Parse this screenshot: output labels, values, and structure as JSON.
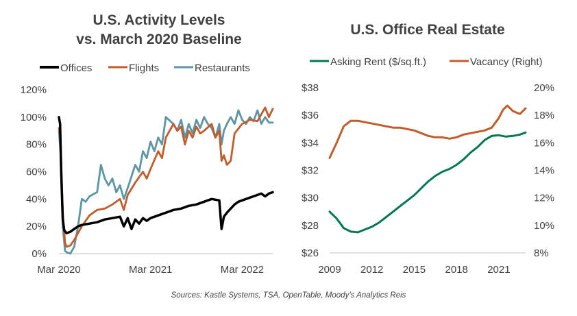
{
  "source_note": "Sources: Kastle Systems, TSA, OpenTable, Moody’s Analytics Reis",
  "chart_data": [
    {
      "type": "line",
      "title_lines": [
        "U.S. Activity Levels",
        "vs. March 2020 Baseline"
      ],
      "xlabel": "",
      "ylabel": "",
      "x_ticks": [
        "Mar 2020",
        "Mar 2021",
        "Mar 2022"
      ],
      "x_tick_months": [
        0,
        12,
        24
      ],
      "xlim_months": [
        0,
        28
      ],
      "ylim": [
        0,
        1.2
      ],
      "y_ticks": [
        0,
        0.2,
        0.4,
        0.6,
        0.8,
        1.0,
        1.2
      ],
      "y_tick_labels": [
        "0%",
        "20%",
        "40%",
        "60%",
        "80%",
        "100%",
        "120%"
      ],
      "grid": false,
      "legend_position": "top",
      "series": [
        {
          "name": "Offices",
          "color": "#000000",
          "x_months": [
            0,
            0.15,
            0.3,
            0.5,
            0.7,
            1,
            1.5,
            2,
            2.5,
            3,
            4,
            5,
            6,
            7,
            8,
            8.5,
            9,
            9.5,
            10,
            10.5,
            11,
            11.5,
            12,
            13,
            14,
            15,
            16,
            17,
            18,
            19,
            20,
            21,
            21.3,
            21.6,
            22,
            23,
            23.5,
            24,
            25,
            26,
            26.5,
            27,
            27.5,
            28
          ],
          "values": [
            1.0,
            0.95,
            0.6,
            0.25,
            0.17,
            0.15,
            0.16,
            0.18,
            0.2,
            0.21,
            0.22,
            0.23,
            0.25,
            0.26,
            0.27,
            0.2,
            0.26,
            0.18,
            0.25,
            0.22,
            0.26,
            0.24,
            0.26,
            0.28,
            0.3,
            0.32,
            0.33,
            0.35,
            0.36,
            0.38,
            0.4,
            0.39,
            0.18,
            0.27,
            0.3,
            0.36,
            0.38,
            0.39,
            0.41,
            0.43,
            0.44,
            0.42,
            0.44,
            0.45
          ]
        },
        {
          "name": "Flights",
          "color": "#c55a2b",
          "x_months": [
            0,
            0.2,
            0.5,
            0.8,
            1,
            1.5,
            2,
            3,
            4,
            5,
            6,
            7,
            8,
            8.5,
            9,
            10,
            11,
            11.5,
            12,
            13,
            13.5,
            14,
            15,
            15.5,
            16,
            16.5,
            17,
            17.5,
            18,
            18.5,
            19,
            20,
            20.5,
            21,
            21.3,
            21.6,
            22,
            22.5,
            23,
            24,
            25,
            26,
            26.5,
            27,
            27.5,
            28
          ],
          "values": [
            0.92,
            0.85,
            0.3,
            0.08,
            0.05,
            0.06,
            0.1,
            0.2,
            0.28,
            0.32,
            0.33,
            0.36,
            0.4,
            0.32,
            0.43,
            0.52,
            0.6,
            0.55,
            0.62,
            0.75,
            0.7,
            0.85,
            0.95,
            0.9,
            0.93,
            0.8,
            0.9,
            0.85,
            0.93,
            0.88,
            0.9,
            0.95,
            0.85,
            0.9,
            0.68,
            0.72,
            0.65,
            0.68,
            0.88,
            0.95,
            0.98,
            0.97,
            1.02,
            1.07,
            1.0,
            1.06
          ]
        },
        {
          "name": "Restaurants",
          "color": "#5b95a6",
          "x_months": [
            0,
            0.2,
            0.5,
            0.8,
            1,
            1.5,
            2,
            2.5,
            3,
            3.5,
            4,
            5,
            5.5,
            6,
            6.5,
            7,
            7.5,
            8,
            8.5,
            9,
            10,
            10.5,
            11,
            11.5,
            12,
            12.5,
            13,
            13.5,
            14,
            15,
            15.5,
            16,
            16.5,
            17,
            17.5,
            18,
            18.5,
            19,
            19.5,
            20,
            20.5,
            21,
            21.3,
            21.6,
            22,
            22.5,
            23,
            23.5,
            24,
            24.5,
            25,
            25.5,
            26,
            26.5,
            27,
            27.5,
            28
          ],
          "values": [
            0.9,
            0.75,
            0.2,
            0.02,
            0.01,
            0.0,
            0.05,
            0.2,
            0.4,
            0.38,
            0.42,
            0.45,
            0.65,
            0.55,
            0.5,
            0.55,
            0.45,
            0.5,
            0.4,
            0.48,
            0.65,
            0.6,
            0.75,
            0.7,
            0.82,
            0.75,
            0.85,
            0.8,
            1.0,
            0.95,
            0.9,
            0.98,
            0.85,
            0.95,
            0.88,
            0.98,
            0.92,
            1.0,
            0.95,
            0.92,
            0.85,
            0.95,
            0.8,
            0.9,
            0.95,
            1.0,
            0.95,
            1.05,
            0.98,
            0.95,
            1.0,
            0.97,
            1.05,
            0.95,
            1.0,
            0.96,
            0.96
          ]
        }
      ]
    },
    {
      "type": "line",
      "title": "U.S. Office Real Estate",
      "xlabel": "",
      "ylabel": "",
      "x_ticks": [
        2009,
        2012,
        2015,
        2018,
        2021
      ],
      "xlim": [
        2009,
        2022.9
      ],
      "ylim": [
        26,
        38
      ],
      "y_ticks": [
        26,
        28,
        30,
        32,
        34,
        36,
        38
      ],
      "y_tick_labels": [
        "$26",
        "$28",
        "$30",
        "$32",
        "$34",
        "$36",
        "$38"
      ],
      "y2lim": [
        0.08,
        0.2
      ],
      "y2_ticks": [
        0.08,
        0.1,
        0.12,
        0.14,
        0.16,
        0.18,
        0.2
      ],
      "y2_tick_labels": [
        "8%",
        "10%",
        "12%",
        "14%",
        "16%",
        "18%",
        "20%"
      ],
      "grid": false,
      "legend_position": "top",
      "series": [
        {
          "name": "Asking Rent ($/sq.ft.)",
          "axis": "left",
          "color": "#007a4d",
          "x": [
            2009,
            2009.5,
            2010,
            2010.5,
            2011,
            2011.5,
            2012,
            2012.5,
            2013,
            2013.5,
            2014,
            2014.5,
            2015,
            2015.5,
            2016,
            2016.5,
            2017,
            2017.5,
            2018,
            2018.5,
            2019,
            2019.5,
            2020,
            2020.5,
            2021,
            2021.5,
            2022,
            2022.5,
            2022.9
          ],
          "values": [
            29.0,
            28.5,
            27.8,
            27.55,
            27.5,
            27.7,
            27.9,
            28.2,
            28.6,
            29.0,
            29.4,
            29.8,
            30.2,
            30.7,
            31.2,
            31.6,
            31.9,
            32.1,
            32.4,
            32.8,
            33.3,
            33.7,
            34.2,
            34.5,
            34.55,
            34.45,
            34.5,
            34.6,
            34.75
          ]
        },
        {
          "name": "Vacancy (Right)",
          "axis": "right",
          "color": "#c55a2b",
          "x": [
            2009,
            2009.5,
            2010,
            2010.5,
            2011,
            2011.5,
            2012,
            2012.5,
            2013,
            2013.5,
            2014,
            2014.5,
            2015,
            2015.5,
            2016,
            2016.5,
            2017,
            2017.5,
            2018,
            2018.5,
            2019,
            2019.5,
            2020,
            2020.5,
            2021,
            2021.3,
            2021.6,
            2022,
            2022.5,
            2022.9
          ],
          "values": [
            0.149,
            0.16,
            0.172,
            0.176,
            0.176,
            0.175,
            0.174,
            0.173,
            0.172,
            0.171,
            0.171,
            0.17,
            0.169,
            0.167,
            0.165,
            0.164,
            0.164,
            0.163,
            0.164,
            0.166,
            0.167,
            0.168,
            0.169,
            0.171,
            0.178,
            0.184,
            0.187,
            0.183,
            0.181,
            0.185
          ]
        }
      ]
    }
  ]
}
